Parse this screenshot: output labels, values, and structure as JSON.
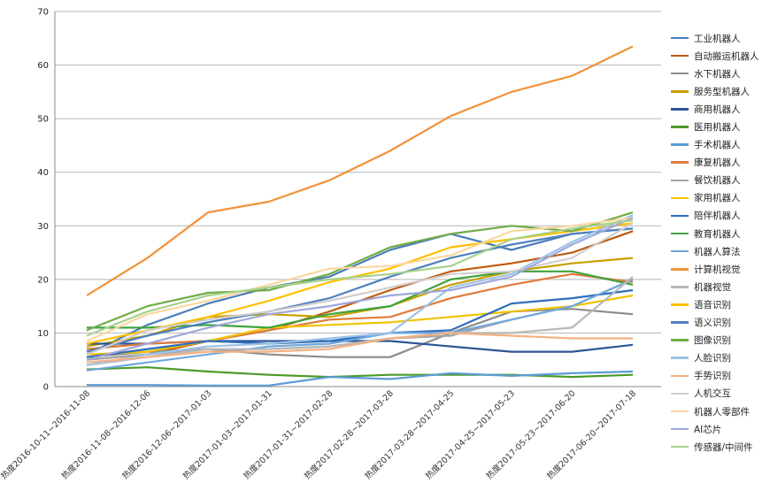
{
  "chart_data": {
    "type": "line",
    "title": "",
    "xlabel": "",
    "ylabel": "",
    "ylim": [
      0,
      70
    ],
    "yticks": [
      0,
      10,
      20,
      30,
      40,
      50,
      60,
      70
    ],
    "grid": "horizontal",
    "legend": "right",
    "categories": [
      "热度2016-10-11~2016-11-08",
      "热度2016-11-08~2016-12-06",
      "热度2016-12-06~2017-01-03",
      "热度2017-01-03~2017-01-31",
      "热度2017-01-31~2017-02-28",
      "热度2017-02-28~2017-03-28",
      "热度2017-03-28~2017-04-25",
      "热度2017-04-25~2017-05-23",
      "热度2017-05-23~2017-06-20",
      "热度2017-06-20~2017-07-18"
    ],
    "series": [
      {
        "name": "工业机器人",
        "color": "#4a7ebb",
        "values": [
          6.0,
          11.5,
          15.5,
          18.5,
          20.5,
          25.5,
          28.5,
          25.5,
          28.5,
          29.5
        ]
      },
      {
        "name": "自动搬运机器人",
        "color": "#be5a0e",
        "values": [
          5.0,
          6.0,
          8.5,
          10.5,
          14.0,
          18.0,
          21.5,
          23.0,
          25.0,
          29.0
        ]
      },
      {
        "name": "水下机器人",
        "color": "#8c8c8c",
        "values": [
          5.5,
          6.5,
          7.0,
          6.0,
          5.5,
          5.5,
          10.0,
          14.0,
          14.5,
          13.5
        ]
      },
      {
        "name": "服务型机器人",
        "color": "#c9a000",
        "values": [
          7.5,
          9.5,
          13.0,
          13.5,
          13.0,
          15.0,
          19.0,
          21.5,
          23.0,
          24.0
        ]
      },
      {
        "name": "商用机器人",
        "color": "#2e5597",
        "values": [
          8.0,
          8.0,
          8.5,
          8.5,
          8.5,
          8.5,
          7.5,
          6.5,
          6.5,
          7.8
        ]
      },
      {
        "name": "医用机器人",
        "color": "#4c9a2a",
        "values": [
          3.2,
          3.6,
          2.8,
          2.2,
          1.8,
          2.2,
          2.2,
          2.2,
          1.8,
          2.2
        ]
      },
      {
        "name": "手术机器人",
        "color": "#5b9bd5",
        "values": [
          0.3,
          0.3,
          0.2,
          0.2,
          1.8,
          1.4,
          2.5,
          2.0,
          2.5,
          2.8
        ]
      },
      {
        "name": "康复机器人",
        "color": "#e07b39",
        "values": [
          7.0,
          8.0,
          8.5,
          10.5,
          12.5,
          13.0,
          16.5,
          19.0,
          21.0,
          19.5
        ]
      },
      {
        "name": "餐饮机器人",
        "color": "#a5a5a5",
        "values": [
          5.0,
          6.0,
          7.0,
          7.0,
          7.5,
          9.0,
          9.5,
          12.5,
          15.0,
          20.0
        ]
      },
      {
        "name": "家用机器人",
        "color": "#f2c200",
        "values": [
          6.0,
          6.5,
          8.5,
          11.0,
          11.5,
          12.0,
          13.0,
          14.0,
          15.0,
          17.0
        ]
      },
      {
        "name": "陪伴机器人",
        "color": "#2e6fbd",
        "values": [
          5.5,
          7.0,
          8.5,
          8.0,
          8.5,
          10.0,
          10.5,
          15.5,
          16.5,
          18.0
        ]
      },
      {
        "name": "教育机器人",
        "color": "#3fa33f",
        "values": [
          11.0,
          11.0,
          11.5,
          11.0,
          13.5,
          15.0,
          20.0,
          21.5,
          21.5,
          19.0
        ]
      },
      {
        "name": "机器人算法",
        "color": "#6fa8dc",
        "values": [
          3.0,
          4.5,
          6.0,
          7.5,
          8.0,
          10.0,
          10.0,
          12.5,
          15.0,
          20.0
        ]
      },
      {
        "name": "计算机视觉",
        "color": "#f2923a",
        "values": [
          17.0,
          24.0,
          32.5,
          34.5,
          38.5,
          44.0,
          50.5,
          55.0,
          58.0,
          63.5
        ]
      },
      {
        "name": "机器视觉",
        "color": "#b8b8b8",
        "values": [
          4.0,
          5.5,
          7.0,
          7.0,
          7.5,
          9.0,
          10.0,
          10.0,
          11.0,
          20.5
        ]
      },
      {
        "name": "语音识别",
        "color": "#ffc000",
        "values": [
          8.0,
          10.5,
          13.0,
          16.0,
          19.5,
          22.0,
          26.0,
          27.5,
          29.0,
          30.5
        ]
      },
      {
        "name": "语义识别",
        "color": "#4f81bd",
        "values": [
          6.5,
          9.5,
          12.0,
          14.0,
          16.5,
          20.5,
          24.0,
          26.5,
          28.5,
          29.5
        ]
      },
      {
        "name": "图像识别",
        "color": "#70ad47",
        "values": [
          10.5,
          15.0,
          17.5,
          18.0,
          21.0,
          26.0,
          28.5,
          30.0,
          29.0,
          32.5
        ]
      },
      {
        "name": "人脸识别",
        "color": "#9dc3e6",
        "values": [
          4.0,
          6.0,
          7.5,
          8.0,
          9.0,
          10.0,
          18.5,
          21.0,
          27.0,
          32.0
        ]
      },
      {
        "name": "手势识别",
        "color": "#f4b183",
        "values": [
          4.5,
          5.5,
          6.5,
          6.5,
          7.0,
          9.0,
          10.0,
          9.5,
          9.0,
          9.0
        ]
      },
      {
        "name": "人机交互",
        "color": "#d0cece",
        "values": [
          6.0,
          10.5,
          12.5,
          14.0,
          16.0,
          18.5,
          21.0,
          21.5,
          24.0,
          30.5
        ]
      },
      {
        "name": "机器人零部件",
        "color": "#fad7a0",
        "values": [
          8.5,
          13.5,
          16.0,
          19.0,
          22.0,
          22.5,
          24.5,
          29.0,
          30.0,
          31.5
        ]
      },
      {
        "name": "AI芯片",
        "color": "#9fa8da",
        "values": [
          5.0,
          8.0,
          11.0,
          13.5,
          15.0,
          17.0,
          18.0,
          20.5,
          26.5,
          31.5
        ]
      },
      {
        "name": "传感器/中间件",
        "color": "#a9d18e",
        "values": [
          9.5,
          14.0,
          17.0,
          18.5,
          20.0,
          21.0,
          22.5,
          27.5,
          29.5,
          31.0
        ]
      }
    ]
  }
}
